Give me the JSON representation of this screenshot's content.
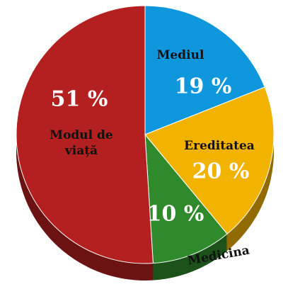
{
  "chart_data": {
    "type": "pie",
    "categories": [
      "Mediul",
      "Ereditatea",
      "Medicina",
      "Modul de viață"
    ],
    "values": [
      19,
      20,
      10,
      51
    ],
    "value_labels": [
      "19 %",
      "20 %",
      "10 %",
      "51 %"
    ],
    "colors": [
      "#0f97dd",
      "#f1b300",
      "#2f8a2c",
      "#b41f1f"
    ]
  }
}
